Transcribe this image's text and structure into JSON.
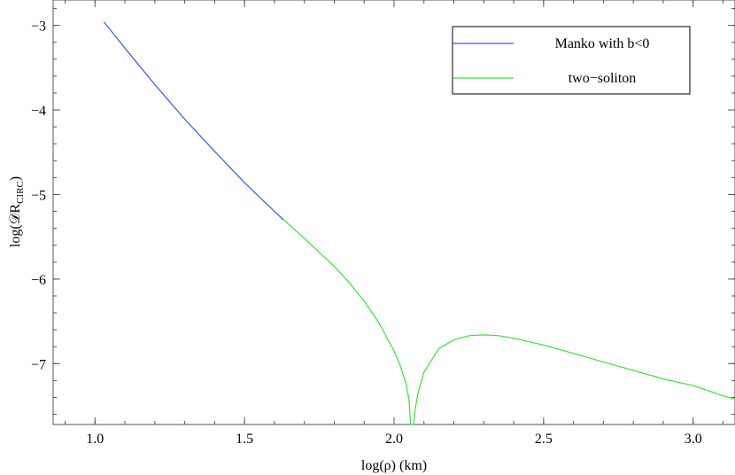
{
  "chart_data": {
    "type": "line",
    "xlabel": "log(ρ) (km)",
    "ylabel": "log(𝒟R",
    "ylabel_sub": "CIRC",
    "ylabel_close": ")",
    "xlim": [
      0.86,
      3.14
    ],
    "ylim": [
      -7.72,
      -2.7
    ],
    "x_ticks": [
      1.0,
      1.5,
      2.0,
      2.5,
      3.0
    ],
    "x_tick_labels": [
      "1.0",
      "1.5",
      "2.0",
      "2.5",
      "3.0"
    ],
    "y_ticks": [
      -3,
      -4,
      -5,
      -6,
      -7
    ],
    "y_tick_labels": [
      "−3",
      "−4",
      "−5",
      "−6",
      "−7"
    ],
    "x_minor_step": 0.1,
    "y_minor_step": 0.2,
    "grid": false,
    "legend_position": "top-right",
    "series": [
      {
        "name": "Manko with b<0",
        "color": "#4d4dff",
        "x": [
          1.03,
          1.1,
          1.2,
          1.3,
          1.4,
          1.5,
          1.6,
          1.63
        ],
        "y": [
          -2.96,
          -3.27,
          -3.7,
          -4.11,
          -4.49,
          -4.86,
          -5.2,
          -5.3
        ]
      },
      {
        "name": "two−soliton",
        "color": "#33e633",
        "x": [
          1.03,
          1.1,
          1.2,
          1.3,
          1.4,
          1.5,
          1.6,
          1.7,
          1.8,
          1.85,
          1.9,
          1.95,
          2.0,
          2.02,
          2.04,
          2.05,
          2.055,
          2.06,
          2.065,
          2.07,
          2.08,
          2.1,
          2.15,
          2.2,
          2.25,
          2.3,
          2.35,
          2.4,
          2.5,
          2.6,
          2.7,
          2.8,
          2.9,
          3.0,
          3.1,
          3.14
        ],
        "y": [
          -2.96,
          -3.27,
          -3.7,
          -4.11,
          -4.49,
          -4.86,
          -5.2,
          -5.52,
          -5.85,
          -6.04,
          -6.26,
          -6.52,
          -6.85,
          -7.02,
          -7.24,
          -7.43,
          -7.72,
          -7.72,
          -7.72,
          -7.55,
          -7.35,
          -7.1,
          -6.82,
          -6.72,
          -6.67,
          -6.66,
          -6.67,
          -6.7,
          -6.78,
          -6.88,
          -6.98,
          -7.08,
          -7.18,
          -7.26,
          -7.38,
          -7.42
        ]
      }
    ]
  }
}
